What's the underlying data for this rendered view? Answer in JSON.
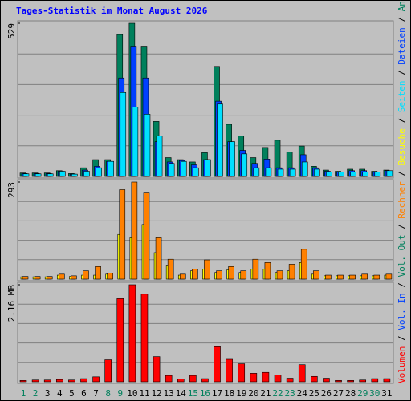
{
  "legend_separator": "/",
  "chart_data": [
    {
      "type": "bar",
      "title": "Tages-Statistik im Monat August 2026",
      "ylim": [
        0,
        529
      ],
      "yticks": [
        529
      ],
      "series": [
        {
          "name": "Anfragen",
          "color": "#00805c",
          "values": [
            12,
            12,
            12,
            20,
            10,
            30,
            58,
            58,
            490,
            529,
            450,
            190,
            65,
            58,
            50,
            82,
            380,
            180,
            140,
            65,
            100,
            125,
            85,
            105,
            35,
            22,
            18,
            25,
            25,
            18,
            22
          ]
        },
        {
          "name": "Dateien",
          "color": "#0040ff",
          "values": [
            10,
            10,
            10,
            18,
            8,
            22,
            35,
            52,
            340,
            450,
            340,
            120,
            50,
            55,
            40,
            58,
            260,
            120,
            90,
            45,
            60,
            30,
            30,
            75,
            30,
            18,
            15,
            20,
            20,
            15,
            20
          ]
        },
        {
          "name": "Seiten",
          "color": "#00e0ff",
          "values": [
            9,
            9,
            9,
            18,
            8,
            18,
            30,
            52,
            290,
            240,
            215,
            140,
            45,
            52,
            30,
            58,
            250,
            120,
            78,
            30,
            30,
            25,
            25,
            50,
            25,
            15,
            15,
            15,
            15,
            15,
            20
          ]
        }
      ]
    },
    {
      "type": "bar",
      "ylim": [
        0,
        293
      ],
      "yticks": [
        293
      ],
      "series": [
        {
          "name": "Besuche",
          "color": "#ffff00",
          "values": [
            7,
            7,
            7,
            12,
            8,
            12,
            12,
            15,
            135,
            125,
            165,
            80,
            40,
            12,
            25,
            30,
            20,
            28,
            20,
            30,
            30,
            20,
            25,
            50,
            15,
            10,
            10,
            10,
            10,
            10,
            12
          ]
        },
        {
          "name": "Rechner",
          "color": "#ff8000",
          "values": [
            8,
            8,
            8,
            15,
            10,
            25,
            38,
            18,
            270,
            293,
            260,
            125,
            60,
            15,
            30,
            58,
            25,
            38,
            25,
            60,
            50,
            25,
            45,
            90,
            25,
            12,
            12,
            12,
            15,
            12,
            15
          ]
        }
      ]
    },
    {
      "type": "bar",
      "ylim": [
        0,
        2.16
      ],
      "yticks": [
        {
          "value": 2.16,
          "label": "2.16 MB"
        }
      ],
      "categories": [
        "1",
        "2",
        "3",
        "4",
        "5",
        "6",
        "7",
        "8",
        "9",
        "10",
        "11",
        "12",
        "13",
        "14",
        "15",
        "16",
        "17",
        "18",
        "19",
        "20",
        "21",
        "22",
        "23",
        "24",
        "25",
        "26",
        "27",
        "28",
        "29",
        "30",
        "31"
      ],
      "label_colors": [
        "#00805c",
        "#00805c",
        "#000000",
        "#000000",
        "#000000",
        "#000000",
        "#000000",
        "#00805c",
        "#00805c",
        "#000000",
        "#000000",
        "#000000",
        "#000000",
        "#000000",
        "#00805c",
        "#00805c",
        "#000000",
        "#000000",
        "#000000",
        "#000000",
        "#000000",
        "#00805c",
        "#00805c",
        "#000000",
        "#000000",
        "#000000",
        "#000000",
        "#000000",
        "#00805c",
        "#00805c",
        "#000000"
      ],
      "series": [
        {
          "name": "Volumen",
          "color": "#ff0000",
          "values": [
            0.03,
            0.04,
            0.04,
            0.05,
            0.04,
            0.07,
            0.11,
            0.49,
            1.85,
            2.16,
            1.95,
            0.56,
            0.14,
            0.06,
            0.14,
            0.07,
            0.78,
            0.5,
            0.4,
            0.19,
            0.21,
            0.15,
            0.08,
            0.38,
            0.12,
            0.08,
            0.03,
            0.03,
            0.04,
            0.07,
            0.07
          ]
        }
      ],
      "legend_only": [
        {
          "name": "Vol. In",
          "color": "#0040ff"
        },
        {
          "name": "Vol. Out",
          "color": "#00805c"
        }
      ]
    }
  ]
}
